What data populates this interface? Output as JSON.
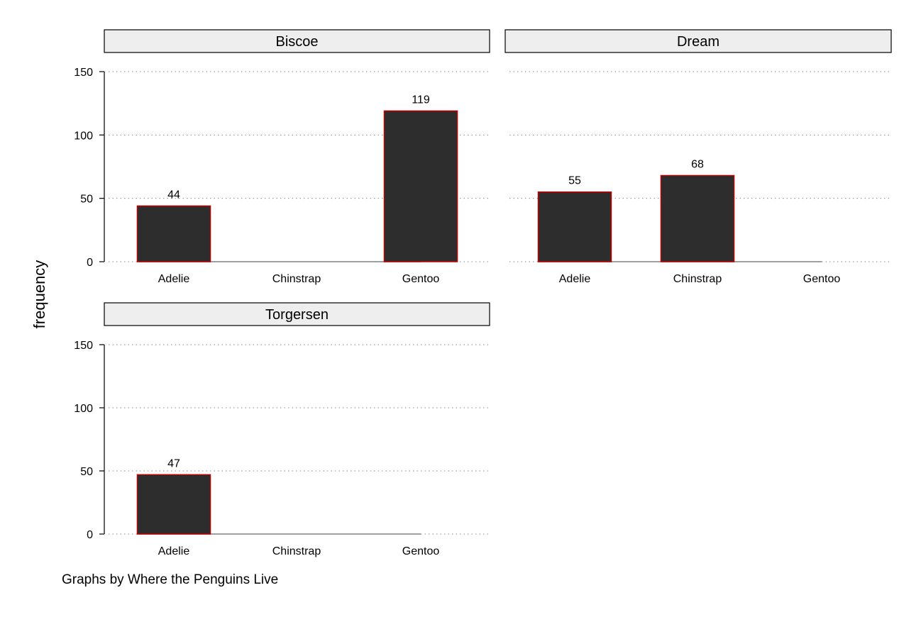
{
  "chart_data": {
    "type": "bar",
    "ylabel": "frequency",
    "note": "Graphs by Where the Penguins Live",
    "ylim": [
      0,
      150
    ],
    "yticks": [
      0,
      50,
      100,
      150
    ],
    "categories": [
      "Adelie",
      "Chinstrap",
      "Gentoo"
    ],
    "grid": true,
    "colors": {
      "bar_fill": "#2d2d2d",
      "bar_outline": "#c00000",
      "strip_fill": "#eeeeee"
    },
    "panels": [
      {
        "name": "Biscoe",
        "values": [
          44,
          0,
          119
        ]
      },
      {
        "name": "Dream",
        "values": [
          55,
          68,
          0
        ]
      },
      {
        "name": "Torgersen",
        "values": [
          47,
          0,
          0
        ]
      }
    ]
  }
}
